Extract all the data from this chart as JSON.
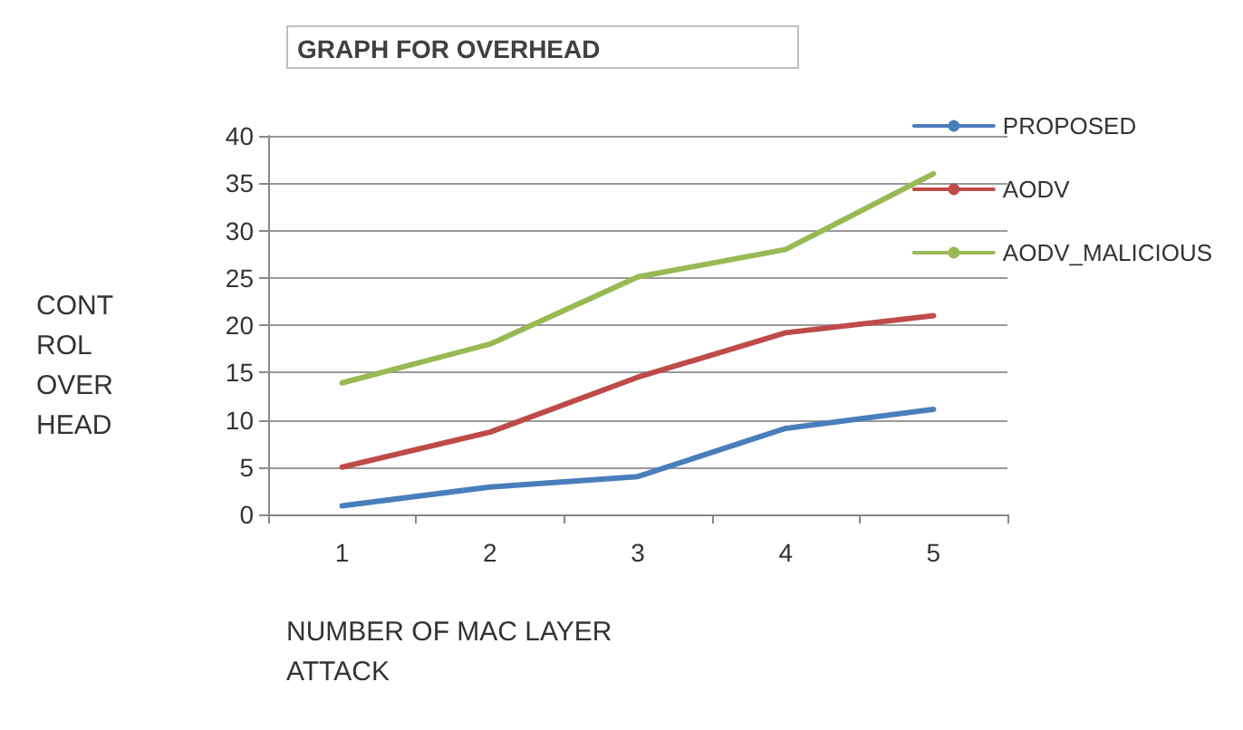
{
  "chart_data": {
    "type": "line",
    "title": "GRAPH FOR OVERHEAD",
    "xlabel": "NUMBER OF MAC LAYER ATTACK",
    "ylabel": "CONT ROL OVER HEAD",
    "categories": [
      "1",
      "2",
      "3",
      "4",
      "5"
    ],
    "series": [
      {
        "name": "PROPOSED",
        "color": "#4a7ebb",
        "values": [
          0.9,
          2.9,
          4.0,
          9.1,
          11.1
        ]
      },
      {
        "name": "AODV",
        "color": "#be4b48",
        "values": [
          5.0,
          8.7,
          14.5,
          19.2,
          21.0
        ]
      },
      {
        "name": "AODV_MALICIOUS",
        "color": "#98b954",
        "values": [
          13.9,
          18.0,
          25.1,
          28.0,
          36.0
        ]
      }
    ],
    "ylim": [
      0,
      40
    ],
    "yticks": [
      0,
      5,
      10,
      15,
      20,
      25,
      30,
      35,
      40
    ],
    "grid": "y",
    "legend": "top right",
    "marker": "none",
    "line_style": "solid"
  }
}
